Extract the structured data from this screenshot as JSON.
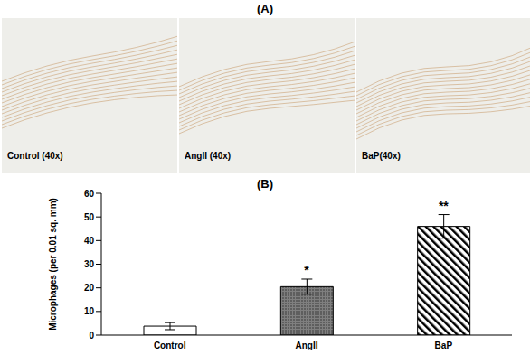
{
  "panel_a": {
    "label": "(A)",
    "images": [
      "Control (40x)",
      "AngII (40x)",
      "BaP(40x)"
    ]
  },
  "chart_data": {
    "type": "bar",
    "title": "(B)",
    "y_label": "Microphages (per 0.01 sq. mm)",
    "categories": [
      "Control",
      "AngII",
      "BaP"
    ],
    "values": [
      3.8,
      20.5,
      46
    ],
    "errors": [
      1.5,
      3.2,
      5
    ],
    "colors": [
      "#ffffff",
      "#7f7f7f",
      "#ffffff"
    ],
    "ylim": [
      0,
      60
    ],
    "yticks": [
      0,
      10,
      20,
      30,
      40,
      50,
      60
    ],
    "grid": false,
    "annotations": [
      {
        "category": "AngII",
        "text": "*"
      },
      {
        "category": "BaP",
        "text": "**"
      }
    ]
  }
}
